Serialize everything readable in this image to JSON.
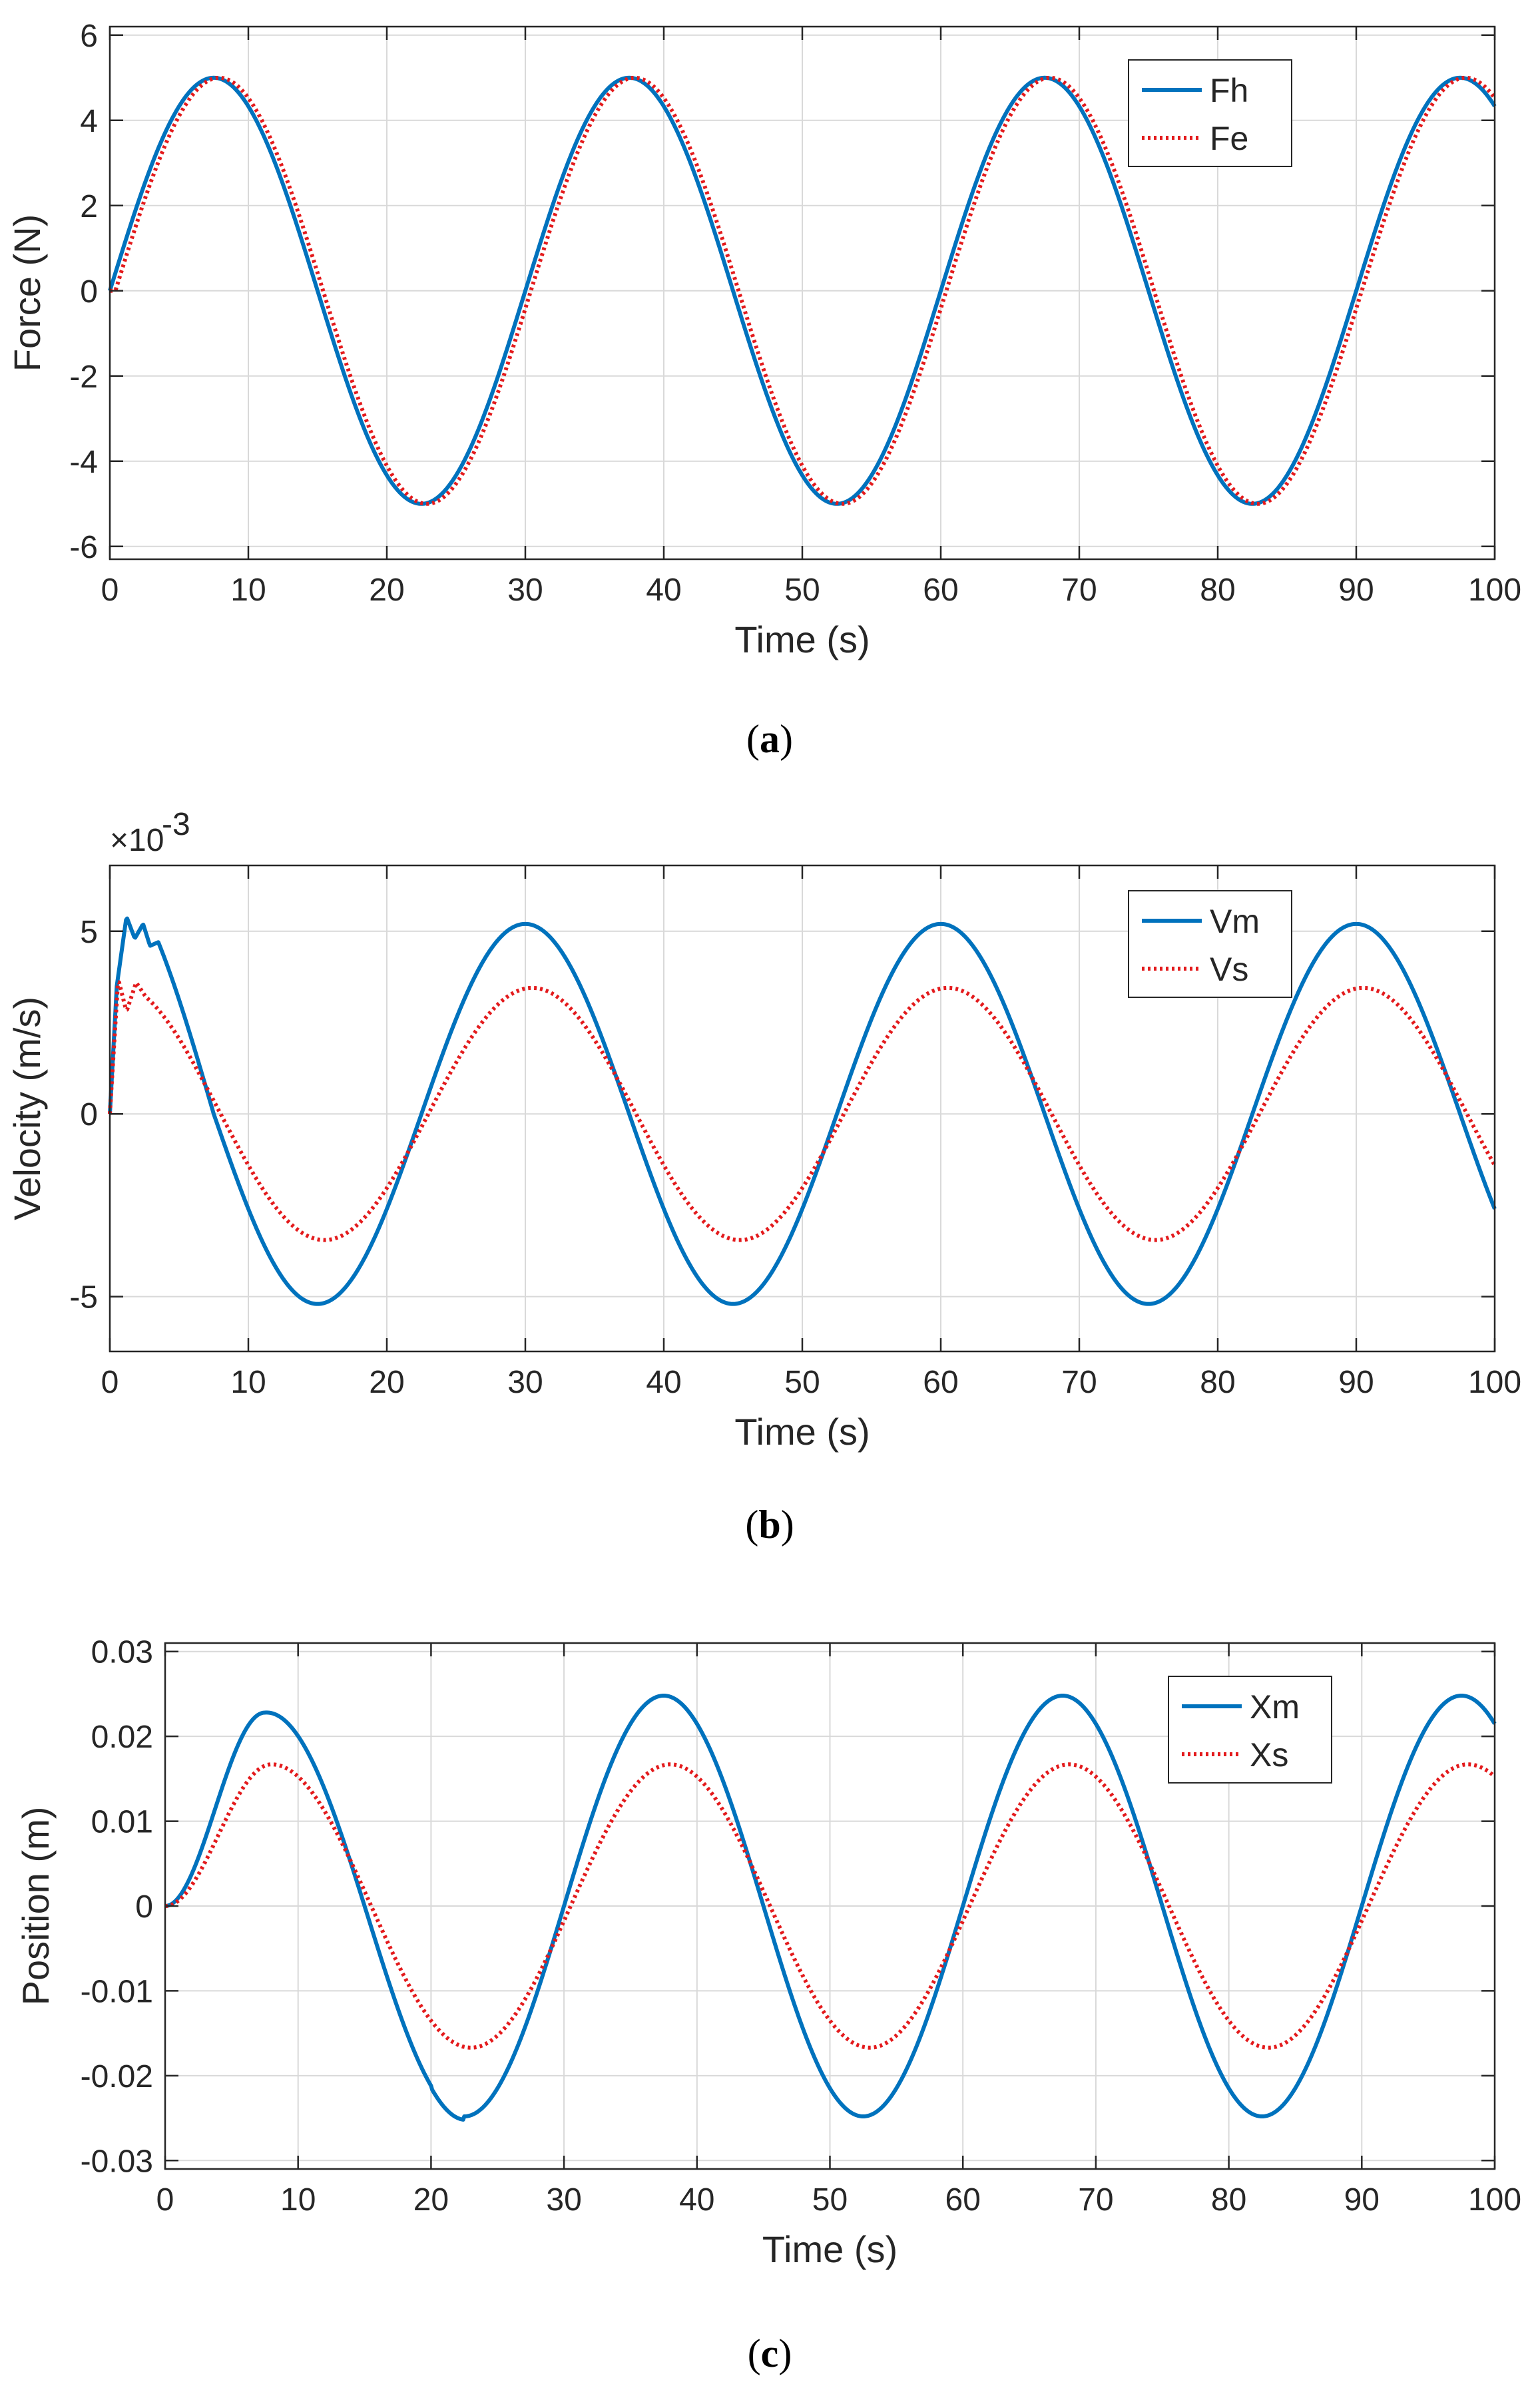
{
  "colors": {
    "series_blue": "#0072BD",
    "series_red": "#E31A1C",
    "axis": "#262626",
    "grid": "#d9d9d9"
  },
  "chart_data": [
    {
      "type": "line",
      "panel": "a",
      "caption_letter": "a",
      "xlabel": "Time (s)",
      "ylabel": "Force (N)",
      "xlim": [
        0,
        100
      ],
      "ylim": [
        -6.3,
        6.2
      ],
      "xticks": [
        0,
        10,
        20,
        30,
        40,
        50,
        60,
        70,
        80,
        90,
        100
      ],
      "xtick_labels": [
        "0",
        "10",
        "20",
        "30",
        "40",
        "50",
        "60",
        "70",
        "80",
        "90",
        "100"
      ],
      "yticks": [
        -6,
        -4,
        -2,
        0,
        2,
        4,
        6
      ],
      "ytick_labels": [
        "-6",
        "-4",
        "-2",
        "0",
        "2",
        "4",
        "6"
      ],
      "exponent_label": "",
      "grid": true,
      "legend_position": "top-right",
      "series": [
        {
          "name": "Fh",
          "style": "solid",
          "color": "#0072BD",
          "formula": {
            "amplitude": 5,
            "period": 30,
            "phase_shift": 0
          }
        },
        {
          "name": "Fe",
          "style": "dotted",
          "color": "#E31A1C",
          "formula": {
            "amplitude": 5,
            "period": 30,
            "phase_shift": 0.4
          }
        }
      ]
    },
    {
      "type": "line",
      "panel": "b",
      "caption_letter": "b",
      "xlabel": "Time (s)",
      "ylabel": "Velocity (m/s)",
      "xlim": [
        0,
        100
      ],
      "ylim": [
        -6.5,
        6.8
      ],
      "xticks": [
        0,
        10,
        20,
        30,
        40,
        50,
        60,
        70,
        80,
        90,
        100
      ],
      "xtick_labels": [
        "0",
        "10",
        "20",
        "30",
        "40",
        "50",
        "60",
        "70",
        "80",
        "90",
        "100"
      ],
      "yticks": [
        -5,
        0,
        5
      ],
      "ytick_labels": [
        "-5",
        "0",
        "5"
      ],
      "exponent_label": "×10",
      "exponent_power": "-3",
      "grid": true,
      "legend_position": "top-right",
      "series": [
        {
          "name": "Vm",
          "style": "solid",
          "color": "#0072BD",
          "formula": {
            "amplitude": 5.2,
            "period": 30,
            "peak_time": 30,
            "startup_peaks": [
              [
                0,
                0
              ],
              [
                0.5,
                3.5
              ],
              [
                1.2,
                5.4
              ],
              [
                1.8,
                4.8
              ],
              [
                2.4,
                5.2
              ],
              [
                2.9,
                4.6
              ],
              [
                3.5,
                4.7
              ]
            ]
          }
        },
        {
          "name": "Vs",
          "style": "dotted",
          "color": "#E31A1C",
          "formula": {
            "amplitude": 3.45,
            "period": 30,
            "peak_time": 30.5,
            "startup_peaks": [
              [
                0,
                0
              ],
              [
                0.6,
                3.7
              ],
              [
                1.2,
                2.8
              ],
              [
                1.9,
                3.6
              ],
              [
                2.6,
                3.2
              ]
            ]
          }
        }
      ]
    },
    {
      "type": "line",
      "panel": "c",
      "caption_letter": "c",
      "xlabel": "Time (s)",
      "ylabel": "Position (m)",
      "xlim": [
        0,
        100
      ],
      "ylim": [
        -0.031,
        0.031
      ],
      "xticks": [
        0,
        10,
        20,
        30,
        40,
        50,
        60,
        70,
        80,
        90,
        100
      ],
      "xtick_labels": [
        "0",
        "10",
        "20",
        "30",
        "40",
        "50",
        "60",
        "70",
        "80",
        "90",
        "100"
      ],
      "yticks": [
        -0.03,
        -0.02,
        -0.01,
        0,
        0.01,
        0.02,
        0.03
      ],
      "ytick_labels": [
        "-0.03",
        "-0.02",
        "-0.01",
        "0",
        "0.01",
        "0.02",
        "0.03"
      ],
      "exponent_label": "",
      "grid": true,
      "legend_position": "top-right",
      "series": [
        {
          "name": "Xm",
          "style": "solid",
          "color": "#0072BD",
          "formula": {
            "amplitude": 0.0248,
            "period": 30,
            "offset_zero": 0,
            "key_values": [
              [
                7.5,
                0.0228
              ],
              [
                22.5,
                -0.0252
              ],
              [
                37.5,
                0.0247
              ],
              [
                52.5,
                -0.0248
              ],
              [
                67.5,
                0.0249
              ],
              [
                82.5,
                -0.0248
              ],
              [
                97.5,
                0.0248
              ],
              [
                100,
                0.0211
              ]
            ]
          }
        },
        {
          "name": "Xs",
          "style": "dotted",
          "color": "#E31A1C",
          "formula": {
            "amplitude": 0.0167,
            "period": 30,
            "peak_time": 8,
            "key_values": [
              [
                8,
                0.0167
              ],
              [
                23,
                -0.0167
              ],
              [
                38,
                0.0167
              ],
              [
                53,
                -0.0167
              ],
              [
                68,
                0.0167
              ],
              [
                83,
                -0.0167
              ],
              [
                98,
                0.0167
              ],
              [
                100,
                0.0155
              ]
            ]
          }
        }
      ]
    }
  ]
}
